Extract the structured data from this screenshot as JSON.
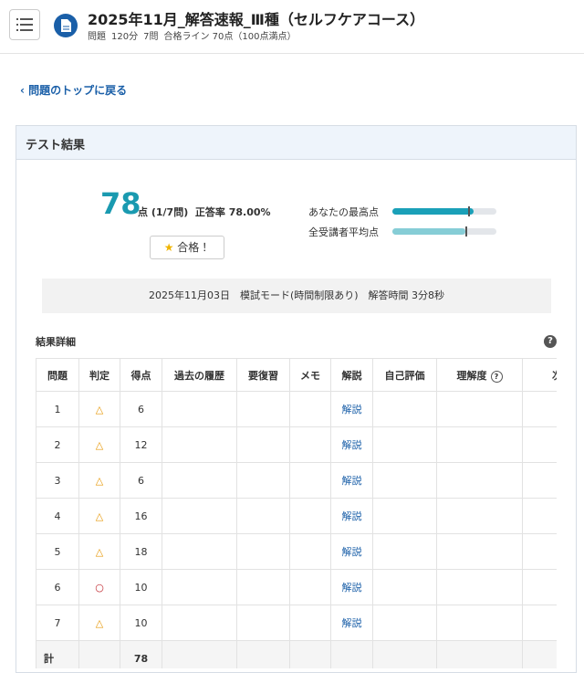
{
  "header": {
    "title": "2025年11月_解答速報_Ⅲ種（セルフケアコース）",
    "meta": [
      "問題",
      "120分",
      "7問",
      "合格ライン 70点（100点満点）"
    ]
  },
  "back_link": "問題のトップに戻る",
  "result": {
    "title": "テスト結果",
    "score": 78,
    "score_unit": "点",
    "correct_count": "(1/7問)",
    "accuracy": "正答率 78.00%",
    "badge": "合格！",
    "bar_max": 100,
    "bar_color": "#1aa0b8",
    "bars": [
      {
        "label": "あなたの最高点",
        "value": 78,
        "marker": 73,
        "color": "#1aa0b8"
      },
      {
        "label": "全受講者平均点",
        "value": 70,
        "marker": 70,
        "color": "#86cdd6"
      }
    ],
    "session": "2025年11月03日　模試モード(時間制限あり)　解答時間 3分8秒"
  },
  "details": {
    "title": "結果詳細",
    "help": "?",
    "columns": [
      "問題",
      "判定",
      "得点",
      "過去の履歴",
      "要復習",
      "メモ",
      "解説",
      "自己評価",
      "理解度",
      "次回"
    ],
    "rows": [
      {
        "no": 1,
        "judge": "△",
        "color": "#e69500",
        "score": 6,
        "link": "解説"
      },
      {
        "no": 2,
        "judge": "△",
        "color": "#e69500",
        "score": 12,
        "link": "解説"
      },
      {
        "no": 3,
        "judge": "△",
        "color": "#e69500",
        "score": 6,
        "link": "解説"
      },
      {
        "no": 4,
        "judge": "△",
        "color": "#e69500",
        "score": 16,
        "link": "解説"
      },
      {
        "no": 5,
        "judge": "△",
        "color": "#e69500",
        "score": 18,
        "link": "解説"
      },
      {
        "no": 6,
        "judge": "○",
        "color": "#c0262d",
        "score": 10,
        "link": "解説"
      },
      {
        "no": 7,
        "judge": "△",
        "color": "#e69500",
        "score": 10,
        "link": "解説"
      }
    ],
    "total_label": "計",
    "total": 78
  }
}
